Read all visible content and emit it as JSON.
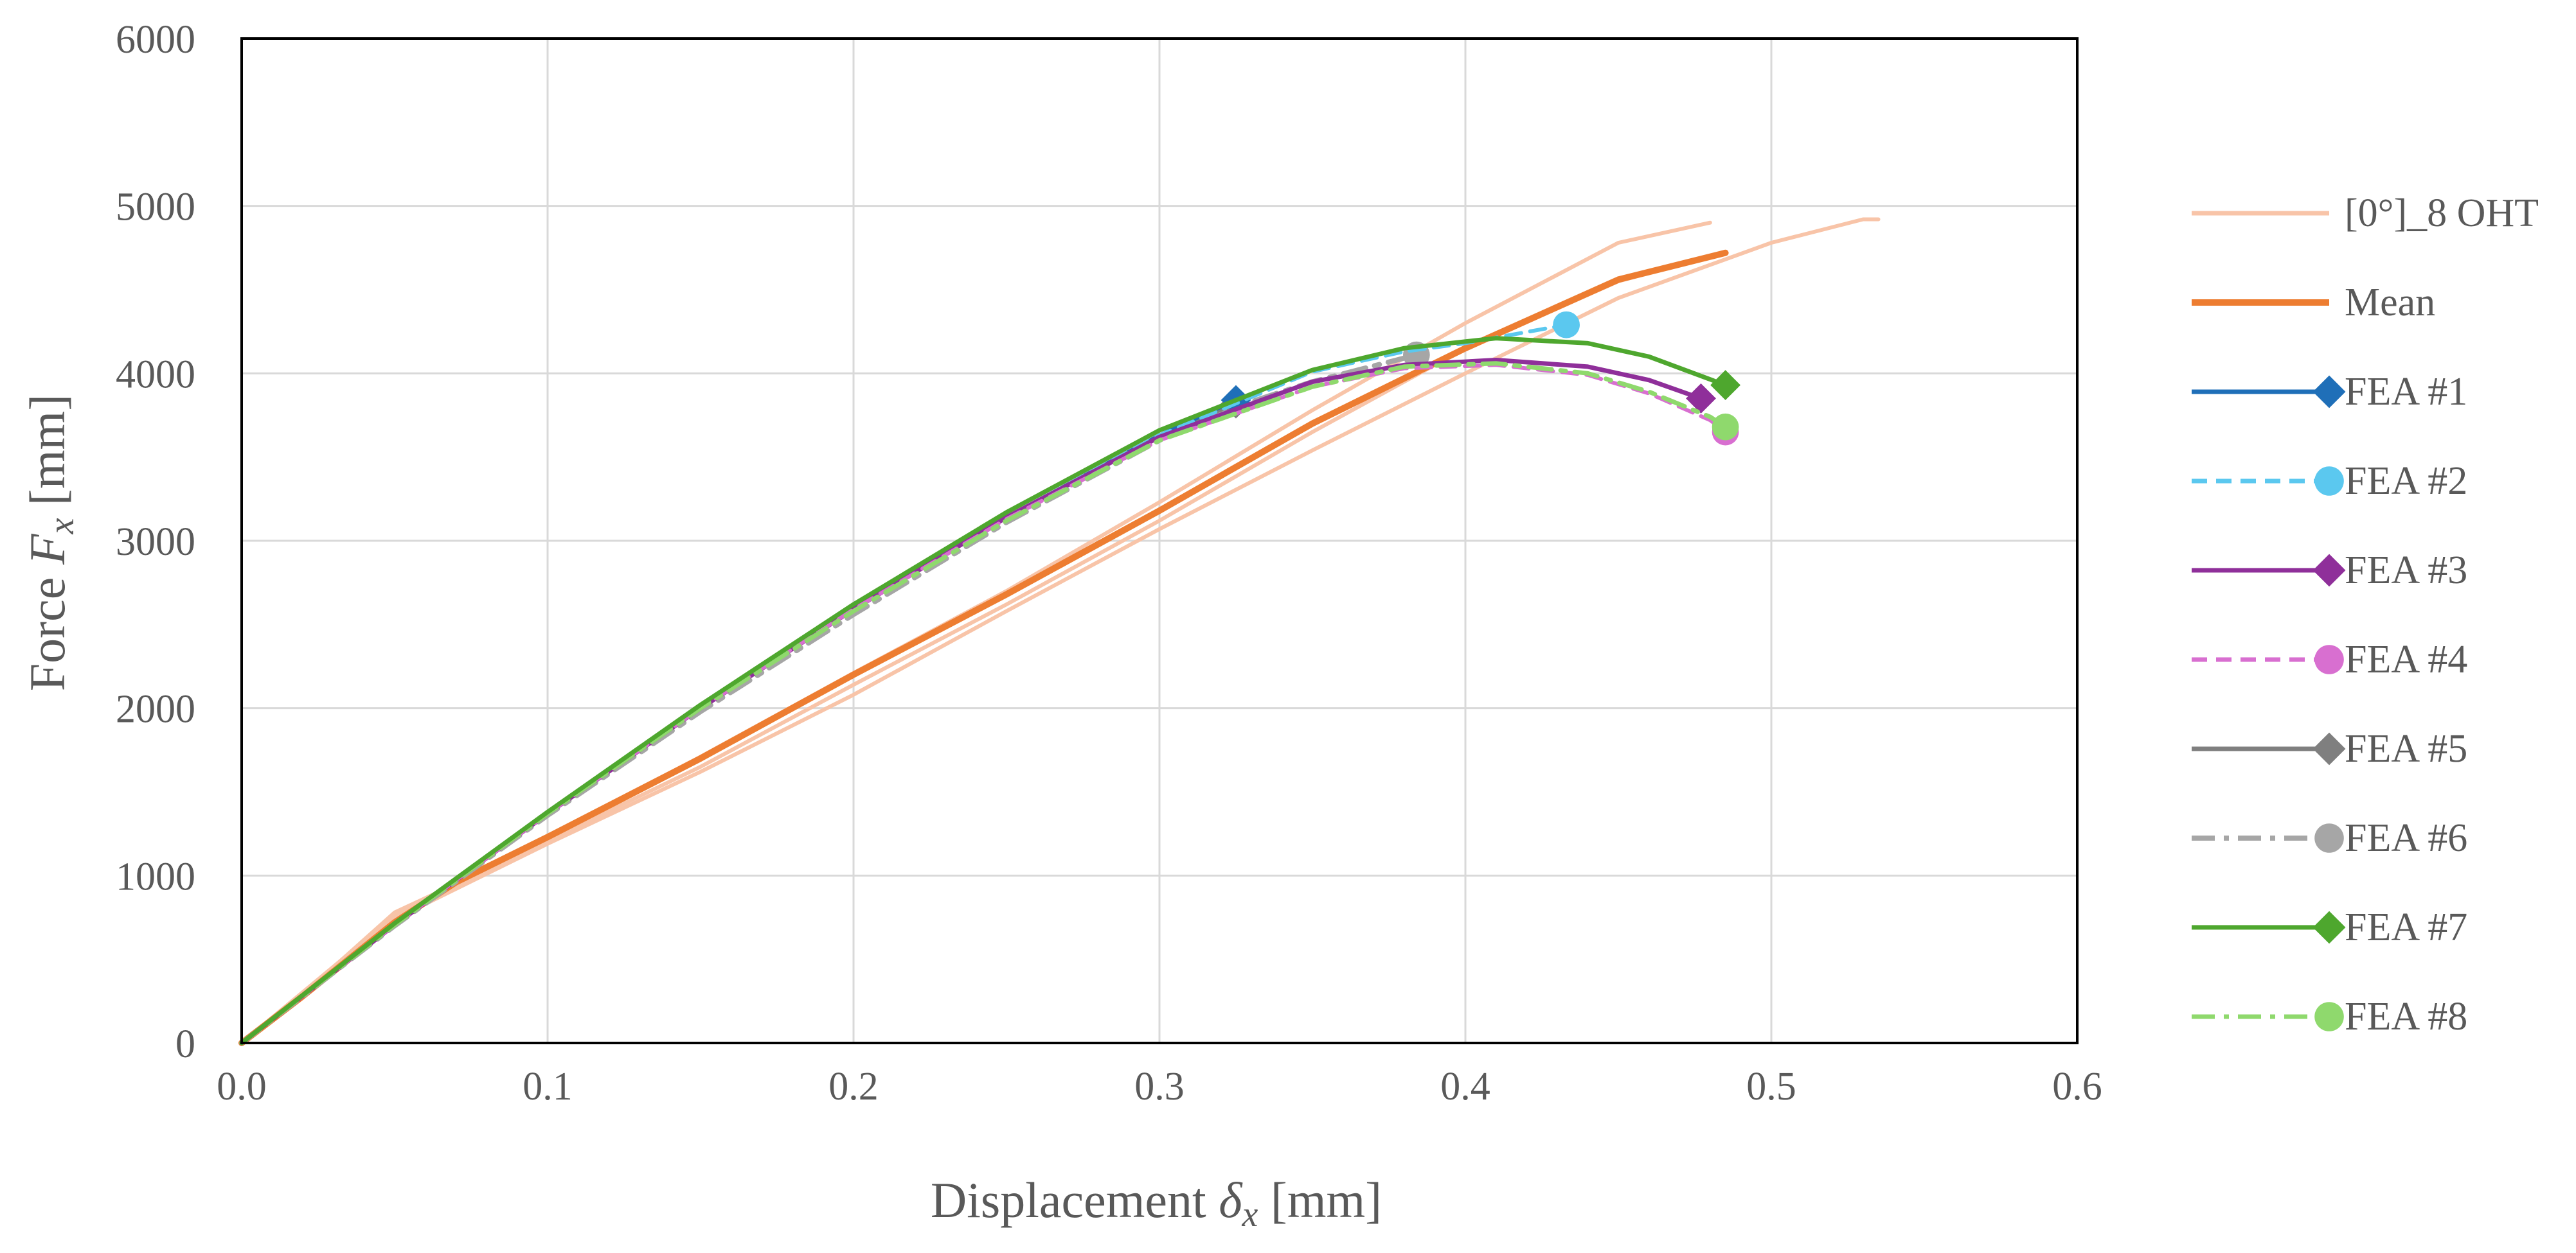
{
  "chart_data": {
    "type": "line",
    "title": "",
    "xlabel": {
      "prefix": "Displacement ",
      "symbol": "δ",
      "subscript": "x",
      "suffix": " [mm]"
    },
    "ylabel": {
      "prefix": "Force ",
      "symbol": "F",
      "subscript": "x",
      "suffix": " [mm]"
    },
    "xlim": [
      0,
      0.6
    ],
    "ylim": [
      0,
      6000
    ],
    "xticks": [
      0.0,
      0.1,
      0.2,
      0.3,
      0.4,
      0.5,
      0.6
    ],
    "xtick_labels": [
      "0.0",
      "0.1",
      "0.2",
      "0.3",
      "0.4",
      "0.5",
      "0.6"
    ],
    "yticks": [
      0,
      1000,
      2000,
      3000,
      4000,
      5000,
      6000
    ],
    "ytick_labels": [
      "0",
      "1000",
      "2000",
      "3000",
      "4000",
      "5000",
      "6000"
    ],
    "grid": true,
    "legend_position": "right",
    "colors": {
      "ohtOrange": "#f8c4a8",
      "meanOrange": "#ed7d31",
      "fea1": "#1f6fb8",
      "fea2": "#5bc8ef",
      "fea3": "#8f2f9a",
      "fea4": "#d86fd0",
      "fea5": "#7f7f7f",
      "fea6": "#a6a6a6",
      "fea7": "#4ea72e",
      "fea8": "#8fd96d"
    },
    "series": [
      {
        "id": "oht1",
        "name": "[0°]_8 OHT",
        "color": "#f8c4a8",
        "width": 6,
        "dash": "",
        "marker": "none",
        "legend": true,
        "x": [
          0,
          0.02,
          0.05,
          0.07,
          0.1,
          0.15,
          0.2,
          0.25,
          0.3,
          0.35,
          0.4,
          0.45,
          0.48
        ],
        "y": [
          0,
          290,
          780,
          950,
          1230,
          1710,
          2210,
          2700,
          3230,
          3780,
          4300,
          4780,
          4900
        ]
      },
      {
        "id": "oht2",
        "name": "[0°]_8 OHT",
        "color": "#f8c4a8",
        "width": 6,
        "dash": "",
        "marker": "none",
        "legend": false,
        "x": [
          0,
          0.05,
          0.1,
          0.15,
          0.2,
          0.25,
          0.3,
          0.35,
          0.4,
          0.45,
          0.5,
          0.53,
          0.535
        ],
        "y": [
          0,
          740,
          1190,
          1620,
          2080,
          2580,
          3070,
          3540,
          4000,
          4450,
          4780,
          4920,
          4920
        ]
      },
      {
        "id": "oht3",
        "name": "[0°]_8 OHT",
        "color": "#f8c4a8",
        "width": 6,
        "dash": "",
        "marker": "none",
        "legend": false,
        "x": [
          0,
          0.05,
          0.1,
          0.15,
          0.2,
          0.25,
          0.3,
          0.35,
          0.4,
          0.45,
          0.48
        ],
        "y": [
          0,
          760,
          1210,
          1650,
          2140,
          2620,
          3120,
          3650,
          4150,
          4550,
          4700
        ]
      },
      {
        "id": "mean",
        "name": "Mean",
        "color": "#ed7d31",
        "width": 10,
        "dash": "",
        "marker": "none",
        "legend": true,
        "x": [
          0,
          0.02,
          0.05,
          0.07,
          0.1,
          0.15,
          0.2,
          0.25,
          0.3,
          0.35,
          0.4,
          0.45,
          0.485
        ],
        "y": [
          0,
          280,
          720,
          960,
          1230,
          1700,
          2200,
          2680,
          3180,
          3700,
          4150,
          4560,
          4720
        ]
      },
      {
        "id": "fea6",
        "name": "FEA #6",
        "color": "#a6a6a6",
        "width": 8,
        "dash": "36 14 8 14",
        "marker": "circle",
        "legend": true,
        "x": [
          0,
          0.05,
          0.1,
          0.15,
          0.2,
          0.25,
          0.3,
          0.325,
          0.35,
          0.384
        ],
        "y": [
          0,
          700,
          1360,
          1980,
          2560,
          3110,
          3600,
          3800,
          3950,
          4110
        ]
      },
      {
        "id": "fea5",
        "name": "FEA #5",
        "color": "#7f7f7f",
        "width": 6,
        "dash": "",
        "marker": "diamond",
        "legend": true,
        "x": [
          0,
          0.05,
          0.1,
          0.15,
          0.2,
          0.25,
          0.3,
          0.325
        ],
        "y": [
          0,
          705,
          1370,
          2000,
          2590,
          3140,
          3630,
          3820
        ]
      },
      {
        "id": "fea1",
        "name": "FEA #1",
        "color": "#1f6fb8",
        "width": 6,
        "dash": "",
        "marker": "diamond",
        "legend": true,
        "x": [
          0,
          0.05,
          0.1,
          0.15,
          0.2,
          0.25,
          0.3,
          0.325
        ],
        "y": [
          0,
          705,
          1370,
          2000,
          2590,
          3140,
          3630,
          3840
        ]
      },
      {
        "id": "fea2",
        "name": "FEA #2",
        "color": "#5bc8ef",
        "width": 6,
        "dash": "24 14",
        "marker": "circle",
        "legend": true,
        "x": [
          0,
          0.05,
          0.1,
          0.15,
          0.2,
          0.25,
          0.3,
          0.35,
          0.38,
          0.4,
          0.433
        ],
        "y": [
          0,
          705,
          1370,
          2000,
          2590,
          3140,
          3630,
          4010,
          4130,
          4180,
          4290
        ]
      },
      {
        "id": "fea3",
        "name": "FEA #3",
        "color": "#8f2f9a",
        "width": 7,
        "dash": "",
        "marker": "diamond",
        "legend": true,
        "x": [
          0,
          0.05,
          0.1,
          0.15,
          0.2,
          0.25,
          0.3,
          0.35,
          0.38,
          0.41,
          0.44,
          0.46,
          0.477
        ],
        "y": [
          0,
          705,
          1370,
          2000,
          2590,
          3140,
          3620,
          3950,
          4050,
          4080,
          4040,
          3960,
          3850
        ]
      },
      {
        "id": "fea4",
        "name": "FEA #4",
        "color": "#d86fd0",
        "width": 6,
        "dash": "24 14",
        "marker": "circle",
        "legend": true,
        "x": [
          0,
          0.05,
          0.1,
          0.15,
          0.2,
          0.25,
          0.3,
          0.35,
          0.38,
          0.41,
          0.44,
          0.46,
          0.48,
          0.485
        ],
        "y": [
          0,
          705,
          1370,
          2000,
          2590,
          3130,
          3600,
          3920,
          4030,
          4050,
          3990,
          3880,
          3720,
          3650
        ]
      },
      {
        "id": "fea8",
        "name": "FEA #8",
        "color": "#8fd96d",
        "width": 7,
        "dash": "36 14 8 14",
        "marker": "circle",
        "legend": true,
        "x": [
          0,
          0.05,
          0.1,
          0.15,
          0.2,
          0.25,
          0.3,
          0.35,
          0.38,
          0.41,
          0.44,
          0.46,
          0.48,
          0.485
        ],
        "y": [
          0,
          705,
          1370,
          2000,
          2580,
          3120,
          3600,
          3920,
          4040,
          4060,
          4000,
          3890,
          3740,
          3680
        ]
      },
      {
        "id": "fea7",
        "name": "FEA #7",
        "color": "#4ea72e",
        "width": 7,
        "dash": "",
        "marker": "diamond",
        "legend": true,
        "x": [
          0,
          0.05,
          0.1,
          0.15,
          0.2,
          0.25,
          0.3,
          0.35,
          0.38,
          0.41,
          0.44,
          0.46,
          0.485
        ],
        "y": [
          0,
          715,
          1380,
          2020,
          2620,
          3170,
          3660,
          4020,
          4150,
          4210,
          4180,
          4100,
          3930
        ]
      }
    ],
    "legend_order": [
      "oht1",
      "mean",
      "fea1",
      "fea2",
      "fea3",
      "fea4",
      "fea5",
      "fea6",
      "fea7",
      "fea8"
    ]
  }
}
